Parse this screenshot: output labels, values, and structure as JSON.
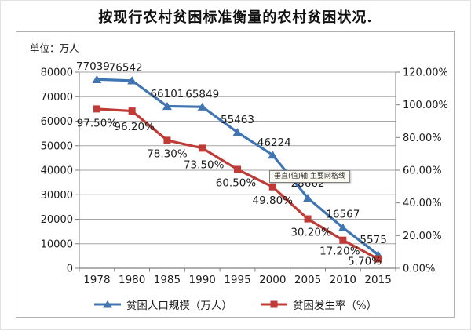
{
  "title": "按现行农村贫困标准衡量的农村贫困状况.",
  "chart": {
    "unit_label": "单位：万人",
    "tooltip_text": "垂直(值)轴 主要网格线"
  },
  "chart_data": {
    "type": "line",
    "title": "按现行农村贫困标准衡量的农村贫困状况",
    "categories": [
      "1978",
      "1980",
      "1985",
      "1990",
      "1995",
      "2000",
      "2005",
      "2010",
      "2015"
    ],
    "series": [
      {
        "name": "贫困人口规模（万人）",
        "axis": "left",
        "color": "#4075b2",
        "marker": "triangle",
        "values": [
          77039,
          76542,
          66101,
          65849,
          55463,
          46224,
          28662,
          16567,
          5575
        ],
        "labels": [
          "77039",
          "76542",
          "66101",
          "65849",
          "55463",
          "46224",
          "28662",
          "16567",
          "5575"
        ]
      },
      {
        "name": "贫困发生率（%）",
        "axis": "right",
        "color": "#c03b35",
        "marker": "square",
        "values": [
          97.5,
          96.2,
          78.3,
          73.5,
          60.5,
          49.8,
          30.2,
          17.2,
          5.7
        ],
        "labels": [
          "97.50%",
          "96.20%",
          "78.30%",
          "73.50%",
          "60.50%",
          "49.80%",
          "30.20%",
          "17.20%",
          "5.70%"
        ]
      }
    ],
    "left_axis": {
      "title": "单位：万人",
      "min": 0,
      "max": 80000,
      "step": 10000,
      "tick_labels": [
        "0",
        "10000",
        "20000",
        "30000",
        "40000",
        "50000",
        "60000",
        "70000",
        "80000"
      ]
    },
    "right_axis": {
      "min": 0,
      "max": 120,
      "step": 20,
      "tick_labels": [
        "0.00%",
        "20.00%",
        "40.00%",
        "60.00%",
        "80.00%",
        "100.00%",
        "120.00%"
      ]
    },
    "legend_position": "bottom",
    "grid": true,
    "annotations": [
      {
        "type": "tooltip",
        "text": "垂直(值)轴 主要网格线",
        "covers": "2005 population data label (28662)"
      }
    ]
  }
}
